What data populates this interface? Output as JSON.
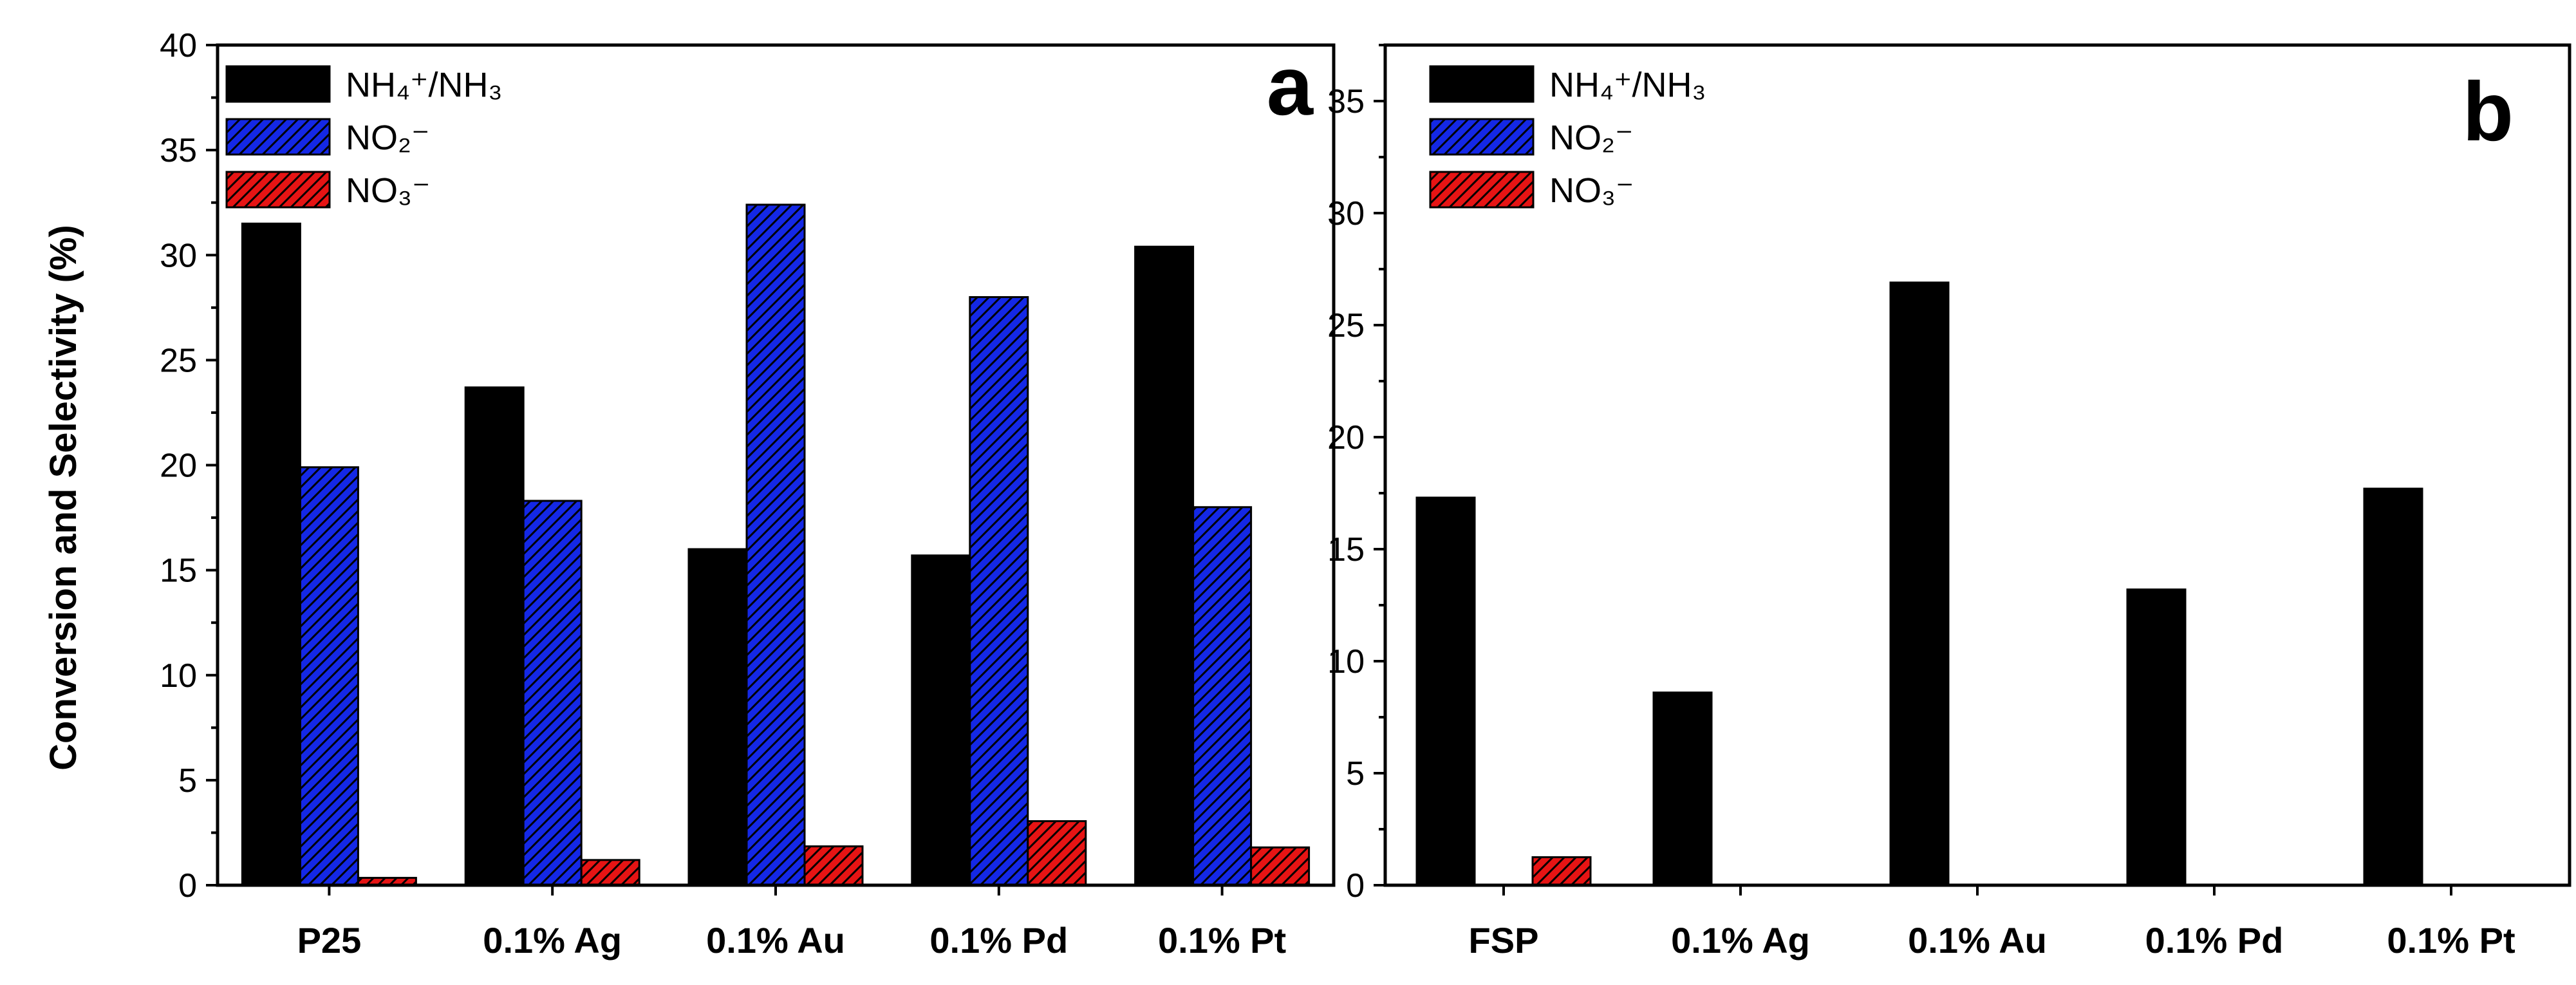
{
  "chart_data": [
    {
      "type": "bar",
      "panel_label": "a",
      "ylabel": "Conversion and Selectivity (%)",
      "xlabel": "",
      "ylim": [
        0,
        40
      ],
      "yticks": [
        0,
        5,
        10,
        15,
        20,
        25,
        30,
        35,
        40
      ],
      "categories": [
        "P25",
        "0.1% Ag",
        "0.1% Au",
        "0.1% Pd",
        "0.1% Pt"
      ],
      "legend_position": "top-left",
      "series": [
        {
          "name": "NH₄⁺/NH₃",
          "fill": "solid",
          "color": "#000000",
          "values": [
            31.5,
            23.7,
            16.0,
            15.7,
            30.4
          ]
        },
        {
          "name": "NO₂⁻",
          "fill": "hatched",
          "color": "#1428e6",
          "values": [
            19.9,
            18.3,
            32.4,
            28.0,
            18.0
          ]
        },
        {
          "name": "NO₃⁻",
          "fill": "hatched",
          "color": "#e61414",
          "values": [
            0.35,
            1.2,
            1.85,
            3.05,
            1.8
          ]
        }
      ]
    },
    {
      "type": "bar",
      "panel_label": "b",
      "ylabel": "",
      "xlabel": "",
      "ylim": [
        0,
        37.5
      ],
      "yticks": [
        0,
        5,
        10,
        15,
        20,
        25,
        30,
        35
      ],
      "categories": [
        "FSP",
        "0.1% Ag",
        "0.1% Au",
        "0.1% Pd",
        "0.1% Pt"
      ],
      "legend_position": "top-left",
      "series": [
        {
          "name": "NH₄⁺/NH₃",
          "fill": "solid",
          "color": "#000000",
          "values": [
            17.3,
            8.6,
            26.9,
            13.2,
            17.7
          ]
        },
        {
          "name": "NO₂⁻",
          "fill": "hatched",
          "color": "#1428e6",
          "values": [
            0,
            0,
            0,
            0,
            0
          ]
        },
        {
          "name": "NO₃⁻",
          "fill": "hatched",
          "color": "#e61414",
          "values": [
            1.25,
            0,
            0,
            0,
            0
          ]
        }
      ]
    }
  ]
}
